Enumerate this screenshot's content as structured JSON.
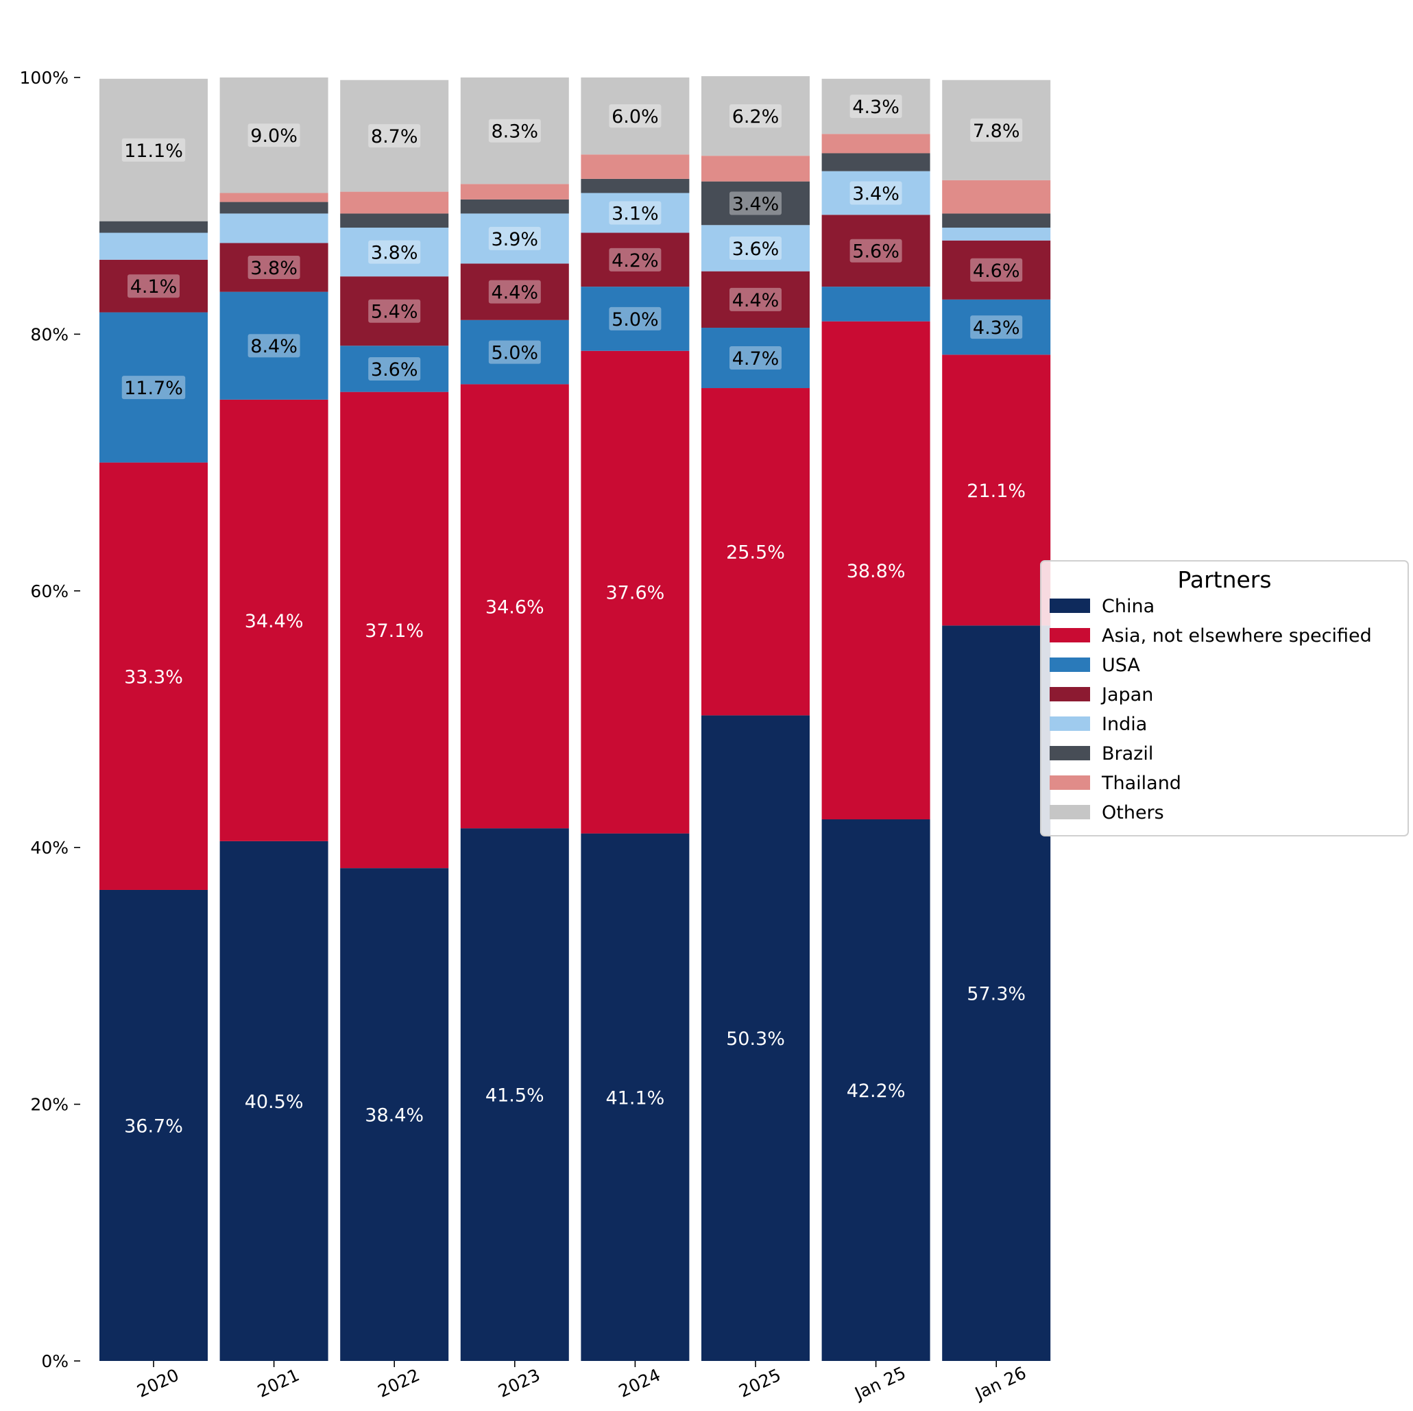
{
  "chart_data": {
    "type": "bar",
    "stacked": true,
    "categories": [
      "2020",
      "2021",
      "2022",
      "2023",
      "2024",
      "2025",
      "Jan 25",
      "Jan 26"
    ],
    "ylim": [
      0,
      100
    ],
    "yticks": [
      0,
      20,
      40,
      60,
      80,
      100
    ],
    "ytick_labels": [
      "0%",
      "20%",
      "40%",
      "60%",
      "80%",
      "100%"
    ],
    "grid": false,
    "series": [
      {
        "name": "China",
        "color": "#0e2a5c",
        "values": [
          36.7,
          40.5,
          38.4,
          41.5,
          41.1,
          50.3,
          42.2,
          57.3
        ]
      },
      {
        "name": "Asia, not elsewhere specified",
        "color": "#c90b33",
        "values": [
          33.3,
          34.4,
          37.1,
          34.6,
          37.6,
          25.5,
          38.8,
          21.1
        ]
      },
      {
        "name": "USA",
        "color": "#2a7aba",
        "values": [
          11.7,
          8.4,
          3.6,
          5.0,
          5.0,
          4.7,
          2.7,
          4.3
        ]
      },
      {
        "name": "Japan",
        "color": "#8c1a31",
        "values": [
          4.1,
          3.8,
          5.4,
          4.4,
          4.2,
          4.4,
          5.6,
          4.6
        ]
      },
      {
        "name": "India",
        "color": "#9fcbee",
        "values": [
          2.1,
          2.3,
          3.8,
          3.9,
          3.1,
          3.6,
          3.4,
          1.0
        ]
      },
      {
        "name": "Brazil",
        "color": "#474d56",
        "values": [
          0.9,
          0.9,
          1.1,
          1.1,
          1.1,
          3.4,
          1.4,
          1.1
        ]
      },
      {
        "name": "Thailand",
        "color": "#e08c89",
        "values": [
          0.0,
          0.7,
          1.7,
          1.2,
          1.9,
          2.0,
          1.5,
          2.6
        ]
      },
      {
        "name": "Others",
        "color": "#c6c6c6",
        "values": [
          11.1,
          9.0,
          8.7,
          8.3,
          6.0,
          6.2,
          4.3,
          7.8
        ]
      }
    ],
    "labels": [
      [
        "36.7%",
        "33.3%",
        "11.7%",
        "4.1%",
        "",
        "",
        "",
        "11.1%"
      ],
      [
        "40.5%",
        "34.4%",
        "8.4%",
        "3.8%",
        "",
        "",
        "",
        "9.0%"
      ],
      [
        "38.4%",
        "37.1%",
        "3.6%",
        "5.4%",
        "3.8%",
        "",
        "",
        "8.7%"
      ],
      [
        "41.5%",
        "34.6%",
        "5.0%",
        "4.4%",
        "3.9%",
        "",
        "",
        "8.3%"
      ],
      [
        "41.1%",
        "37.6%",
        "5.0%",
        "4.2%",
        "3.1%",
        "",
        "",
        "6.0%"
      ],
      [
        "50.3%",
        "25.5%",
        "4.7%",
        "4.4%",
        "3.6%",
        "3.4%",
        "",
        "6.2%"
      ],
      [
        "42.2%",
        "38.8%",
        "",
        "5.6%",
        "3.4%",
        "",
        "",
        "4.3%"
      ],
      [
        "57.3%",
        "21.1%",
        "4.3%",
        "4.6%",
        "",
        "",
        "",
        "7.8%"
      ]
    ],
    "legend": {
      "title": "Partners",
      "position": "right"
    }
  }
}
